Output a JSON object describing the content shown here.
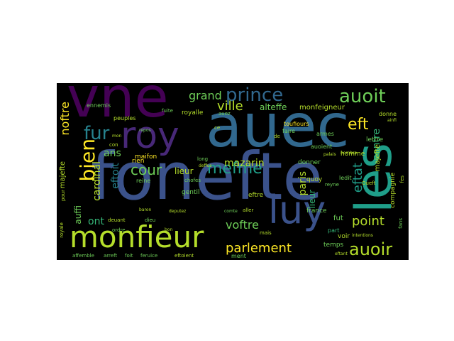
{
  "words": {
    "vne": "vne",
    "auec": "auec",
    "royal": "roy",
    "fonest": "fonefte",
    "les": "les",
    "luy": "luy",
    "monsieur": "monfieur",
    "auoir": "auoir",
    "auoit": "auoit",
    "prince": "prince",
    "grand": "grand",
    "ville": "ville",
    "bien": "bien",
    "fur": "fur",
    "cour": "cour",
    "mesme": "mefme",
    "mazarin": "mazarin",
    "parlement": "parlement",
    "estat": "eftat",
    "est": "eft",
    "contre": "contre",
    "point": "point",
    "voftre": "voftre",
    "paris": "paris",
    "nostre": "noftre",
    "cardinal": "cardinal",
    "estoit": "eftoit",
    "ans": "ans",
    "ont": "ont",
    "aussi": "auffi",
    "majeste": "majefte",
    "royalle": "royalle",
    "alteffe": "alteffe",
    "monseigneur": "monfeigneur",
    "donner": "donner",
    "temps": "temps",
    "fut": "fut",
    "france": "france",
    "lieur": "lieur",
    "estre": "eftre",
    "ennemis": "ennemis",
    "peuples": "peuples",
    "armes": "armes",
    "lettre": "lettre",
    "donne": "donne",
    "homme": "homme",
    "maison": "maifon",
    "rien": "rien",
    "reine": "reine",
    "gentil": "gentil",
    "toujours": "toufiours",
    "faire": "faire",
    "ledit": "ledit",
    "part": "part",
    "assemble": "affemble",
    "arrest": "arreft",
    "soit": "foit",
    "service": "feruice",
    "estoient": "eftoient",
    "compagnie": "compagnie",
    "auoient": "auoient",
    "quoy": "quoy",
    "voir": "voir",
    "ce": "ce",
    "fuite": "fuite",
    "long": "long",
    "deffus": "deffus",
    "choses": "chofes",
    "deputez": "deputez",
    "baron": "baron",
    "dieu": "dieu",
    "ordre": "ordre",
    "devant": "deuant",
    "estant": "eftant",
    "intentions": "intentions",
    "ment": "ment",
    "mais": "mais",
    "ainsi": "ainfi",
    "nombre": "nombre",
    "palais": "palais",
    "reyne": "reyne",
    "pour": "pour",
    "aller": "aller",
    "comte": "comte",
    "repos": "repos",
    "con": "con",
    "mon": "mon",
    "sans": "fans",
    "auez": "auez",
    "de": "de",
    "ses": "fes",
    "ouest": "Oueft",
    "royale": "royale",
    "bon": "bon"
  },
  "colors": {
    "background": "#000000",
    "page": "#ffffff",
    "purple": "#440154",
    "indigo": "#482878",
    "blue": "#3b528b",
    "steel": "#31688e",
    "teal": "#26828e",
    "green": "#1f9e89",
    "lime": "#35b779",
    "yellowgreen": "#6ece58",
    "yellow": "#b5de2b",
    "bright": "#fde725"
  }
}
